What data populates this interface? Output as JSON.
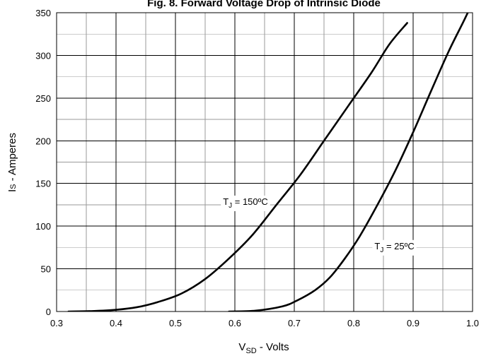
{
  "chart_data": {
    "type": "line",
    "title": "Fig. 8. Forward Voltage Drop of Intrinsic Diode",
    "xlabel": {
      "main": "V",
      "sub": "SD",
      "rest": " - Volts"
    },
    "ylabel": {
      "main": "I",
      "sub": "S",
      "rest": " - Amperes"
    },
    "xlim": [
      0.3,
      1.0
    ],
    "ylim": [
      0,
      350
    ],
    "x_ticks": [
      0.3,
      0.4,
      0.5,
      0.6,
      0.7,
      0.8,
      0.9,
      1.0
    ],
    "x_tick_labels": [
      "0.3",
      "0.4",
      "0.5",
      "0.6",
      "0.7",
      "0.8",
      "0.9",
      "1.0"
    ],
    "y_ticks": [
      0,
      50,
      100,
      150,
      200,
      250,
      300,
      350
    ],
    "y_tick_labels": [
      "0",
      "50",
      "100",
      "150",
      "200",
      "250",
      "300",
      "350"
    ],
    "grid": true,
    "series": [
      {
        "points": [
          [
            0.32,
            0
          ],
          [
            0.36,
            0.5
          ],
          [
            0.4,
            2
          ],
          [
            0.435,
            5
          ],
          [
            0.47,
            11
          ],
          [
            0.51,
            21
          ],
          [
            0.55,
            38
          ],
          [
            0.59,
            62
          ],
          [
            0.63,
            90
          ],
          [
            0.67,
            125
          ],
          [
            0.71,
            160
          ],
          [
            0.75,
            200
          ],
          [
            0.79,
            240
          ],
          [
            0.83,
            280
          ],
          [
            0.86,
            313
          ],
          [
            0.89,
            338
          ]
        ]
      },
      {
        "points": [
          [
            0.59,
            0
          ],
          [
            0.635,
            1
          ],
          [
            0.68,
            6
          ],
          [
            0.705,
            13
          ],
          [
            0.735,
            25
          ],
          [
            0.76,
            40
          ],
          [
            0.785,
            62
          ],
          [
            0.81,
            88
          ],
          [
            0.84,
            125
          ],
          [
            0.87,
            165
          ],
          [
            0.9,
            210
          ],
          [
            0.93,
            258
          ],
          [
            0.96,
            305
          ],
          [
            0.985,
            340
          ],
          [
            1.0,
            362
          ]
        ]
      }
    ],
    "annotations": [
      {
        "main": "T",
        "sub": "J",
        "rest": " = 150ºC",
        "x": 0.58,
        "y": 125
      },
      {
        "main": "T",
        "sub": "J",
        "rest": " = 25ºC",
        "x": 0.835,
        "y": 73
      }
    ]
  }
}
